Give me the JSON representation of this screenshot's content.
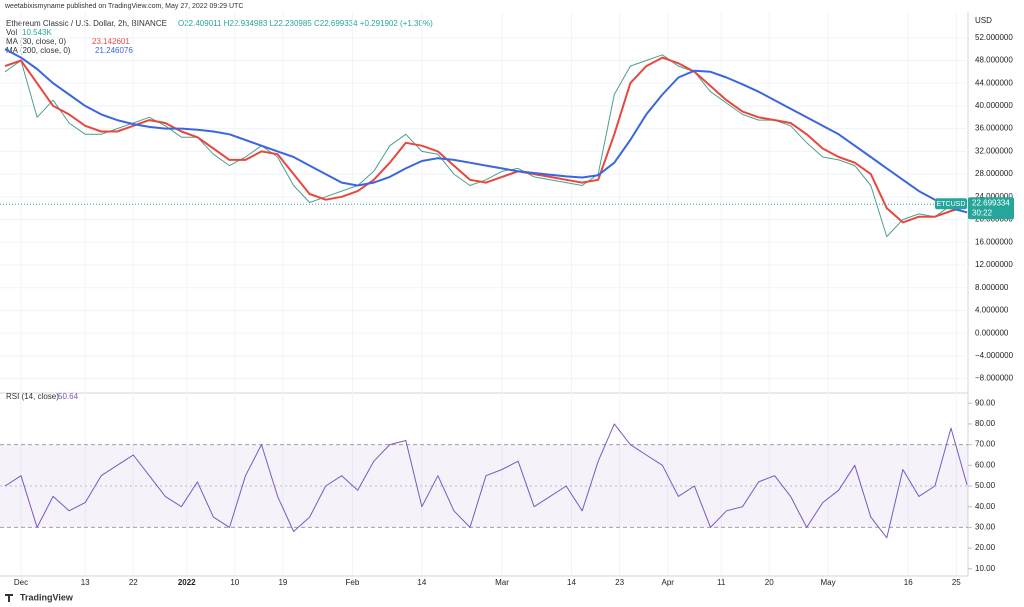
{
  "chart_data": {
    "type": "line",
    "byline": "weetabixismyname published on TradingView.com, May 27, 2022 09:29 UTC",
    "title": "Ethereum Classic / U.S. Dollar, 2h, BINANCE",
    "ohlc": "O22.409011 H22.934983 L22.230985 C22.699334 +0.291902 (+1.30%)",
    "volume_label": "Vol",
    "volume_value": "10.543K",
    "y_axis_label": "USD",
    "current_price": 22.699334,
    "countdown": "30:22",
    "footer": "TradingView",
    "grid": true,
    "x": [
      "2021-11-28",
      "2021-12-01",
      "2021-12-04",
      "2021-12-07",
      "2021-12-10",
      "2021-12-13",
      "2021-12-16",
      "2021-12-19",
      "2021-12-22",
      "2021-12-25",
      "2021-12-28",
      "2021-12-31",
      "2022-01-03",
      "2022-01-06",
      "2022-01-09",
      "2022-01-12",
      "2022-01-15",
      "2022-01-18",
      "2022-01-21",
      "2022-01-24",
      "2022-01-27",
      "2022-01-30",
      "2022-02-02",
      "2022-02-05",
      "2022-02-08",
      "2022-02-11",
      "2022-02-14",
      "2022-02-17",
      "2022-02-20",
      "2022-02-23",
      "2022-02-26",
      "2022-03-01",
      "2022-03-04",
      "2022-03-07",
      "2022-03-10",
      "2022-03-13",
      "2022-03-16",
      "2022-03-19",
      "2022-03-22",
      "2022-03-25",
      "2022-03-28",
      "2022-03-31",
      "2022-04-03",
      "2022-04-06",
      "2022-04-09",
      "2022-04-12",
      "2022-04-15",
      "2022-04-18",
      "2022-04-21",
      "2022-04-24",
      "2022-04-27",
      "2022-04-30",
      "2022-05-03",
      "2022-05-06",
      "2022-05-09",
      "2022-05-12",
      "2022-05-15",
      "2022-05-18",
      "2022-05-21",
      "2022-05-24",
      "2022-05-27"
    ],
    "xlim": [
      "2021-11-28",
      "2022-05-27"
    ],
    "xticks": [
      {
        "value": "2021-12-01",
        "label": "Dec"
      },
      {
        "value": "2021-12-13",
        "label": "13"
      },
      {
        "value": "2021-12-22",
        "label": "22"
      },
      {
        "value": "2022-01-01",
        "label": "2022"
      },
      {
        "value": "2022-01-10",
        "label": "10"
      },
      {
        "value": "2022-01-19",
        "label": "19"
      },
      {
        "value": "2022-02-01",
        "label": "Feb"
      },
      {
        "value": "2022-02-14",
        "label": "14"
      },
      {
        "value": "2022-03-01",
        "label": "Mar"
      },
      {
        "value": "2022-03-14",
        "label": "14"
      },
      {
        "value": "2022-03-23",
        "label": "23"
      },
      {
        "value": "2022-04-01",
        "label": "Apr"
      },
      {
        "value": "2022-04-11",
        "label": "11"
      },
      {
        "value": "2022-04-20",
        "label": "20"
      },
      {
        "value": "2022-05-01",
        "label": "May"
      },
      {
        "value": "2022-05-16",
        "label": "16"
      },
      {
        "value": "2022-05-25",
        "label": "25"
      }
    ],
    "ylim": [
      -10,
      56
    ],
    "yticks": [
      {
        "value": 52,
        "label": "52.000000"
      },
      {
        "value": 48,
        "label": "48.000000"
      },
      {
        "value": 44,
        "label": "44.000000"
      },
      {
        "value": 40,
        "label": "40.000000"
      },
      {
        "value": 36,
        "label": "36.000000"
      },
      {
        "value": 32,
        "label": "32.000000"
      },
      {
        "value": 28,
        "label": "28.000000"
      },
      {
        "value": 24,
        "label": "24.000000"
      },
      {
        "value": 20,
        "label": "20.000000"
      },
      {
        "value": 16,
        "label": "16.000000"
      },
      {
        "value": 12,
        "label": "12.000000"
      },
      {
        "value": 8,
        "label": "8.000000"
      },
      {
        "value": 4,
        "label": "4.000000"
      },
      {
        "value": 0,
        "label": "0.000000"
      },
      {
        "value": -4,
        "label": "−4.000000"
      },
      {
        "value": -8,
        "label": "−8.000000"
      }
    ],
    "series": [
      {
        "name": "ETCUSD",
        "color": "#4f9e8f",
        "values": [
          46,
          48,
          38,
          41,
          37,
          35,
          35,
          36,
          37,
          38,
          36.5,
          34.5,
          34.5,
          31.5,
          29.5,
          31,
          33,
          31,
          26,
          23,
          24,
          25,
          26,
          28.5,
          33,
          35,
          32,
          31.5,
          28,
          26,
          27,
          28.5,
          29,
          27.5,
          27,
          26.5,
          26,
          28,
          42,
          47,
          48,
          49,
          47,
          46,
          42.5,
          40.5,
          38.5,
          37.5,
          37.5,
          36.5,
          33.5,
          31,
          30.5,
          29.5,
          26,
          17,
          20,
          21,
          20.5,
          22.5,
          22.7
        ]
      },
      {
        "name": "MA (30, close, 0)",
        "legend_value": "23.142601",
        "color": "#e8473d",
        "values": [
          47,
          48,
          44,
          40,
          38.5,
          36.5,
          35.5,
          35.5,
          36.5,
          37.5,
          37,
          35.5,
          34.5,
          32.5,
          30.5,
          30.5,
          32,
          31.5,
          28,
          24.5,
          23.5,
          24,
          25,
          27,
          30,
          33.5,
          33,
          32,
          29.5,
          27,
          26.5,
          27.5,
          28.5,
          28,
          27.5,
          27,
          26.5,
          27,
          35,
          44,
          47,
          48.5,
          47.5,
          46,
          43.5,
          41,
          39,
          38,
          37.5,
          37,
          35,
          32.5,
          31,
          30,
          28,
          22,
          19.5,
          20.5,
          20.5,
          21.5,
          22.3
        ]
      },
      {
        "name": "MA (200, close, 0)",
        "legend_value": "21.246076",
        "color": "#3a66e0",
        "values": [
          50,
          48.5,
          46.5,
          44,
          42,
          40,
          38.5,
          37.5,
          36.8,
          36.3,
          36,
          36,
          35.8,
          35.5,
          35,
          34,
          33,
          32,
          31,
          29.5,
          28,
          26.5,
          26,
          26.5,
          27.5,
          29,
          30.3,
          30.8,
          30.5,
          30,
          29.5,
          29,
          28.5,
          28.2,
          27.9,
          27.6,
          27.4,
          27.8,
          30,
          34,
          38.5,
          42,
          45,
          46.2,
          46,
          45,
          43.8,
          42.5,
          41,
          39.5,
          38,
          36.5,
          35,
          33,
          31,
          29,
          27,
          25,
          23.5,
          22,
          21.25
        ]
      }
    ],
    "rsi": {
      "name": "RSI (14, close)",
      "legend_value": "50.64",
      "color": "#7e57c2",
      "values": [
        50,
        55,
        30,
        45,
        38,
        42,
        55,
        60,
        65,
        55,
        45,
        40,
        52,
        35,
        30,
        55,
        70,
        45,
        28,
        35,
        50,
        55,
        48,
        62,
        70,
        72,
        40,
        55,
        38,
        30,
        55,
        58,
        62,
        40,
        45,
        50,
        38,
        62,
        80,
        70,
        65,
        60,
        45,
        50,
        30,
        38,
        40,
        52,
        55,
        45,
        30,
        42,
        48,
        60,
        35,
        25,
        58,
        45,
        50,
        78,
        50.6
      ],
      "ylim": [
        7,
        93.5
      ],
      "bands": [
        30,
        50,
        70
      ],
      "yticks": [
        {
          "value": 90,
          "label": "90.00"
        },
        {
          "value": 80,
          "label": "80.00"
        },
        {
          "value": 70,
          "label": "70.00"
        },
        {
          "value": 60,
          "label": "60.00"
        },
        {
          "value": 50,
          "label": "50.00"
        },
        {
          "value": 40,
          "label": "40.00"
        },
        {
          "value": 30,
          "label": "30.00"
        },
        {
          "value": 20,
          "label": "20.00"
        },
        {
          "value": 10,
          "label": "10.00"
        }
      ]
    }
  }
}
